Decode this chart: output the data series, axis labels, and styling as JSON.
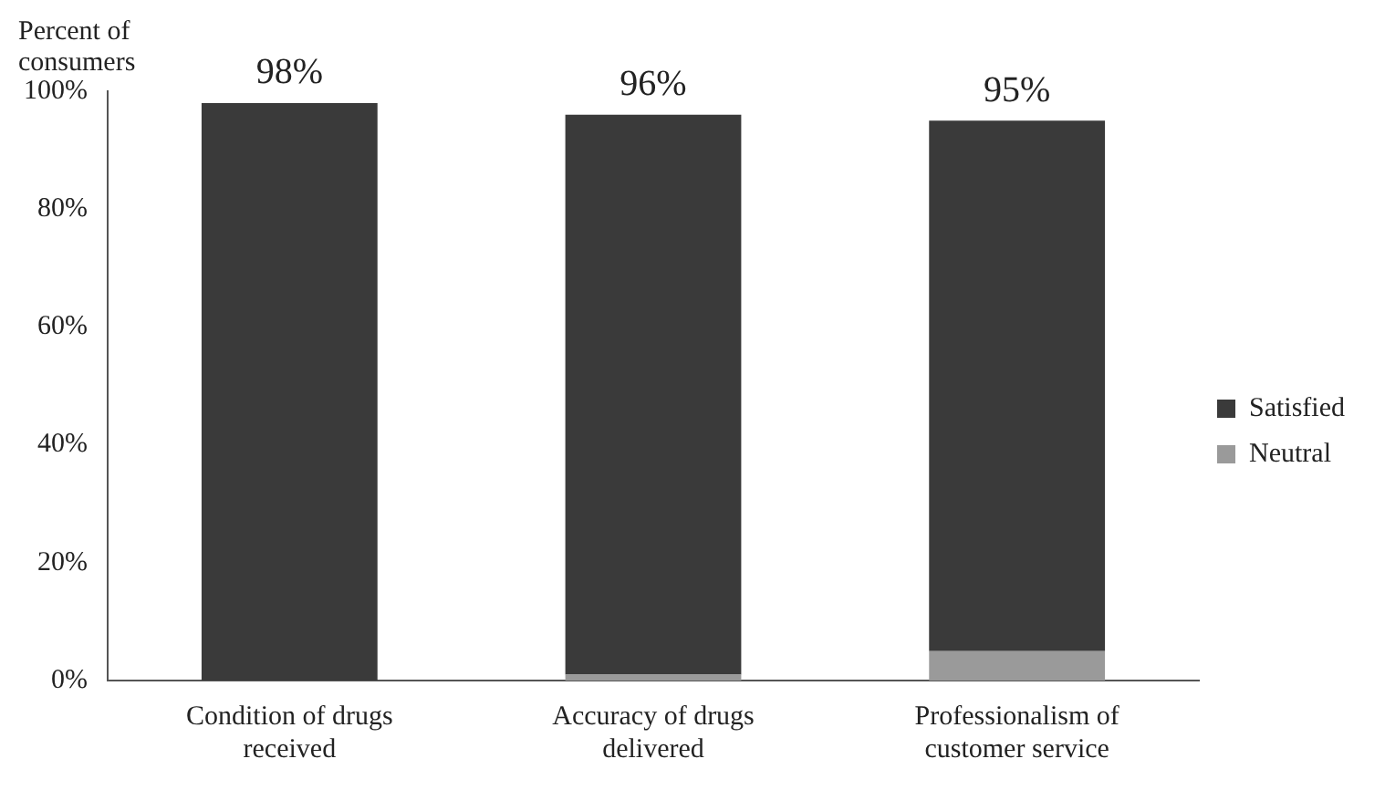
{
  "chart_data": {
    "type": "bar",
    "stacked": true,
    "ylabel": "Percent of consumers",
    "categories": [
      "Condition of drugs received",
      "Accuracy of drugs delivered",
      "Professionalism of customer service"
    ],
    "series": [
      {
        "name": "Neutral",
        "color": "#9a9a9a",
        "values": [
          0,
          1,
          5
        ]
      },
      {
        "name": "Satisfied",
        "color": "#3a3a3a",
        "values": [
          98,
          95,
          90
        ]
      }
    ],
    "totals": [
      "98%",
      "96%",
      "95%"
    ],
    "ylim": [
      0,
      100
    ],
    "yticks": [
      {
        "value": 0,
        "label": "0%"
      },
      {
        "value": 20,
        "label": "20%"
      },
      {
        "value": 40,
        "label": "40%"
      },
      {
        "value": 60,
        "label": "60%"
      },
      {
        "value": 80,
        "label": "80%"
      },
      {
        "value": 100,
        "label": "100%"
      }
    ],
    "grid": false,
    "legend": "right"
  }
}
